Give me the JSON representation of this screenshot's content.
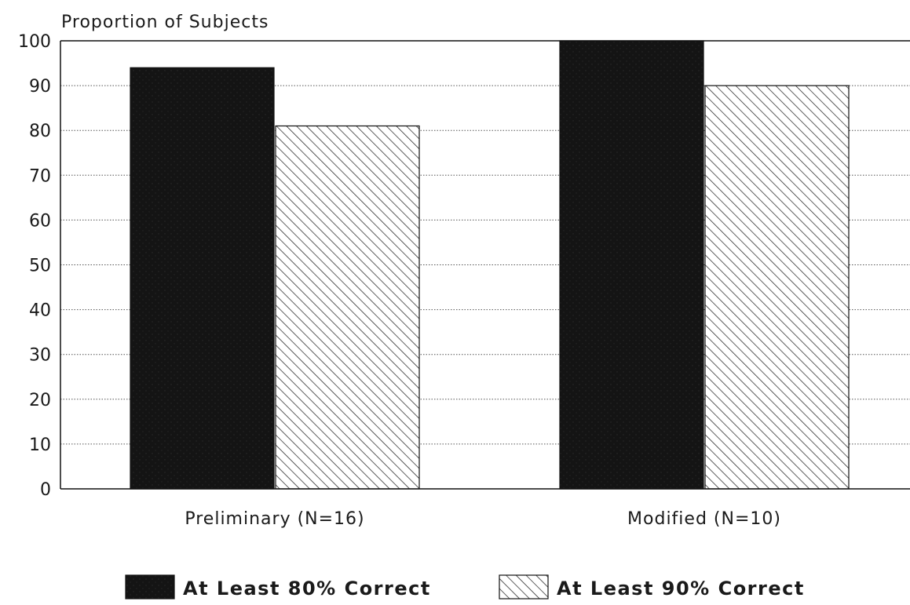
{
  "chart_data": {
    "type": "bar",
    "ylabel": "Proportion of Subjects",
    "xlabel": "",
    "ylim": [
      0,
      100
    ],
    "yticks": [
      0,
      10,
      20,
      30,
      40,
      50,
      60,
      70,
      80,
      90,
      100
    ],
    "grid": true,
    "legend_position": "bottom-center",
    "categories": [
      "Preliminary (N=16)",
      "Modified (N=10)"
    ],
    "series": [
      {
        "name": "At Least 80% Correct",
        "values": [
          94,
          100
        ],
        "fill": "solid",
        "color": "#111111"
      },
      {
        "name": "At Least 90% Correct",
        "values": [
          81,
          90
        ],
        "fill": "hatched",
        "color": "#ffffff"
      }
    ]
  }
}
